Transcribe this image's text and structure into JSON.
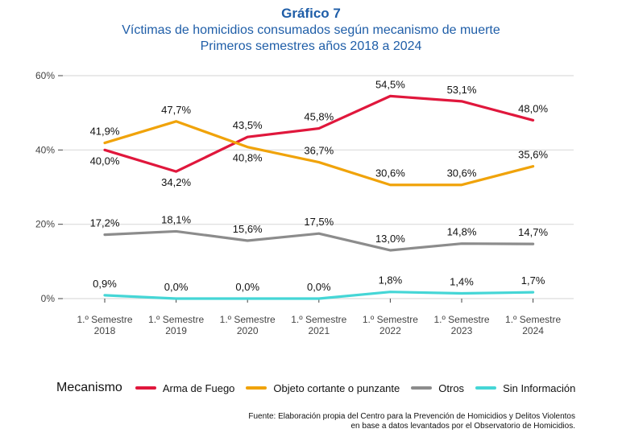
{
  "header": {
    "title": "Gráfico 7",
    "subtitle_1": "Víctimas de homicidios consumados según mecanismo de muerte",
    "subtitle_2": "Primeros semestres años 2018 a 2024"
  },
  "legend": {
    "title": "Mecanismo"
  },
  "source": {
    "line_1": "Fuente: Elaboración propia del Centro para la Prevención de Homicidios y Delitos Violentos",
    "line_2": "en base a datos levantados por el Observatorio de Homicidios."
  },
  "chart_data": {
    "type": "line",
    "title": "Víctimas de homicidios consumados según mecanismo de muerte",
    "categories": [
      [
        "1.º Semestre",
        "2018"
      ],
      [
        "1.º Semestre",
        "2019"
      ],
      [
        "1.º Semestre",
        "2020"
      ],
      [
        "1.º Semestre",
        "2021"
      ],
      [
        "1.º Semestre",
        "2022"
      ],
      [
        "1.º Semestre",
        "2023"
      ],
      [
        "1.º Semestre",
        "2024"
      ]
    ],
    "y_ticks": [
      0,
      20,
      40,
      60
    ],
    "y_tick_labels": [
      "0%",
      "20%",
      "40%",
      "60%"
    ],
    "ylim": [
      0,
      60
    ],
    "grid": true,
    "legend_position": "bottom",
    "series": [
      {
        "name": "Arma de Fuego",
        "color": "#e0173c",
        "values": [
          40.0,
          34.2,
          43.5,
          45.8,
          54.5,
          53.1,
          48.0
        ],
        "labels": [
          "40,0%",
          "34,2%",
          "43,5%",
          "45,8%",
          "54,5%",
          "53,1%",
          "48,0%"
        ],
        "label_side": [
          "below",
          "below",
          "above",
          "above",
          "above",
          "above",
          "above"
        ]
      },
      {
        "name": "Objeto cortante o punzante",
        "color": "#f0a30a",
        "values": [
          41.9,
          47.7,
          40.8,
          36.7,
          30.6,
          30.6,
          35.6
        ],
        "labels": [
          "41,9%",
          "47,7%",
          "40,8%",
          "36,7%",
          "30,6%",
          "30,6%",
          "35,6%"
        ],
        "label_side": [
          "above",
          "above",
          "below",
          "above",
          "above",
          "above",
          "above"
        ]
      },
      {
        "name": "Otros",
        "color": "#8c8c8c",
        "values": [
          17.2,
          18.1,
          15.6,
          17.5,
          13.0,
          14.8,
          14.7
        ],
        "labels": [
          "17,2%",
          "18,1%",
          "15,6%",
          "17,5%",
          "13,0%",
          "14,8%",
          "14,7%"
        ],
        "label_side": [
          "above",
          "above",
          "above",
          "above",
          "above",
          "above",
          "above"
        ]
      },
      {
        "name": "Sin Información",
        "color": "#45d6d6",
        "values": [
          0.9,
          0.0,
          0.0,
          0.0,
          1.8,
          1.4,
          1.7
        ],
        "labels": [
          "0,9%",
          "0,0%",
          "0,0%",
          "0,0%",
          "1,8%",
          "1,4%",
          "1,7%"
        ],
        "label_side": [
          "above",
          "above",
          "above",
          "above",
          "above",
          "above",
          "above"
        ]
      }
    ]
  }
}
